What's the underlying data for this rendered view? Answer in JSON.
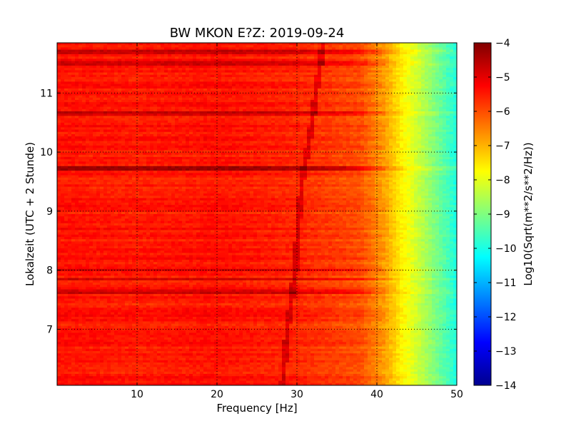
{
  "chart_data": {
    "type": "heatmap",
    "title": "BW MKON E?Z: 2019-09-24",
    "xlabel": "Frequency [Hz]",
    "ylabel": "Lokalzeit (UTC + 2 Stunde)",
    "xlim": [
      0,
      50
    ],
    "ylim": [
      11.85,
      6.05
    ],
    "x_ticks": [
      10,
      20,
      30,
      40,
      50
    ],
    "x_tick_labels": [
      "10",
      "20",
      "30",
      "40",
      "50"
    ],
    "y_ticks": [
      7,
      8,
      9,
      10,
      11
    ],
    "y_tick_labels": [
      "7",
      "8",
      "9",
      "10",
      "11"
    ],
    "grid": true,
    "colormap": "jet",
    "colorbar": {
      "label": "Log10(Sqrt(m**2/s**2/Hz))",
      "vmin": -14,
      "vmax": -4,
      "ticks": [
        -4,
        -5,
        -6,
        -7,
        -8,
        -9,
        -10,
        -11,
        -12,
        -13,
        -14
      ],
      "tick_labels": [
        "−4",
        "−5",
        "−6",
        "−7",
        "−8",
        "−9",
        "−10",
        "−11",
        "−12",
        "−13",
        "−14"
      ]
    },
    "spectral_profile": [
      {
        "freq": 0,
        "value": -5.4
      },
      {
        "freq": 10,
        "value": -5.5
      },
      {
        "freq": 20,
        "value": -5.4
      },
      {
        "freq": 30,
        "value": -5.6
      },
      {
        "freq": 38,
        "value": -6.0
      },
      {
        "freq": 41,
        "value": -6.8
      },
      {
        "freq": 43,
        "value": -7.6
      },
      {
        "freq": 45,
        "value": -8.2
      },
      {
        "freq": 47,
        "value": -8.9
      },
      {
        "freq": 49,
        "value": -9.6
      },
      {
        "freq": 50,
        "value": -10.0
      }
    ],
    "drifting_line": [
      {
        "time": 6.05,
        "freq": 28.2
      },
      {
        "time": 7.0,
        "freq": 28.8
      },
      {
        "time": 8.0,
        "freq": 29.8
      },
      {
        "time": 9.0,
        "freq": 30.3
      },
      {
        "time": 9.7,
        "freq": 30.8
      },
      {
        "time": 10.0,
        "freq": 31.3
      },
      {
        "time": 10.5,
        "freq": 31.9
      },
      {
        "time": 11.0,
        "freq": 32.4
      },
      {
        "time": 11.85,
        "freq": 33.3
      }
    ],
    "strong_bands": [
      {
        "time": 7.65,
        "strength": 0.6
      },
      {
        "time": 7.85,
        "strength": 0.5
      },
      {
        "time": 8.0,
        "strength": 0.45
      },
      {
        "time": 9.72,
        "strength": 1.2
      },
      {
        "time": 10.65,
        "strength": 0.7
      },
      {
        "time": 11.5,
        "strength": 0.55
      },
      {
        "time": 11.7,
        "strength": 0.6
      }
    ]
  },
  "colors": {
    "background": "#ffffff",
    "axes_frame": "#000000",
    "grid": "#000000"
  }
}
